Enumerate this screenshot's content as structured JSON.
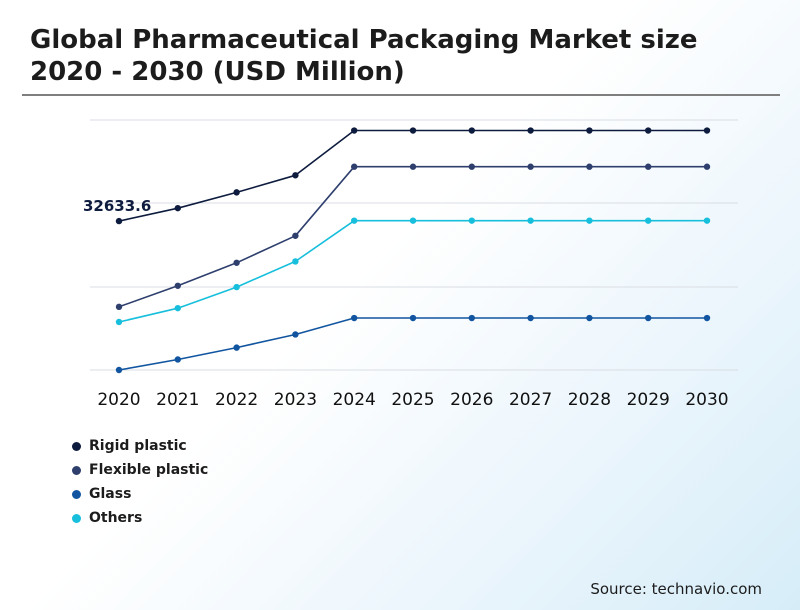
{
  "title": "Global Pharmaceutical Packaging Market size 2020 - 2030 (USD Million)",
  "source": "Source: technavio.com",
  "colors": {
    "rigid": "#0d1b3e",
    "flexible": "#2e3f6e",
    "glass": "#1155a0",
    "others": "#17bfdc",
    "grid": "#d9dde3"
  },
  "chart_data": {
    "type": "line",
    "x": [
      "2020",
      "2021",
      "2022",
      "2023",
      "2024",
      "2025",
      "2026",
      "2027",
      "2028",
      "2029",
      "2030"
    ],
    "series": [
      {
        "name": "Rigid plastic",
        "color": "#0d1b3e",
        "values": [
          32633.6,
          34600,
          37000,
          39600,
          46400,
          46400,
          46400,
          46400,
          46400,
          46400,
          46400
        ]
      },
      {
        "name": "Flexible plastic",
        "color": "#2e3f6e",
        "values": [
          19600,
          22800,
          26300,
          30400,
          40900,
          40900,
          40900,
          40900,
          40900,
          40900,
          40900
        ]
      },
      {
        "name": "Glass",
        "color": "#1155a0",
        "values": [
          10000,
          11600,
          13400,
          15400,
          17900,
          17900,
          17900,
          17900,
          17900,
          17900,
          17900
        ]
      },
      {
        "name": "Others",
        "color": "#17bfdc",
        "values": [
          17300,
          19400,
          22600,
          26500,
          32700,
          32700,
          32700,
          32700,
          32700,
          32700,
          32700
        ]
      }
    ],
    "annotations": [
      {
        "series": "Rigid plastic",
        "x": "2020",
        "label": "32633.6"
      }
    ],
    "ylim": [
      10000,
      48000
    ],
    "grid": true,
    "legend": "bottom-left"
  }
}
